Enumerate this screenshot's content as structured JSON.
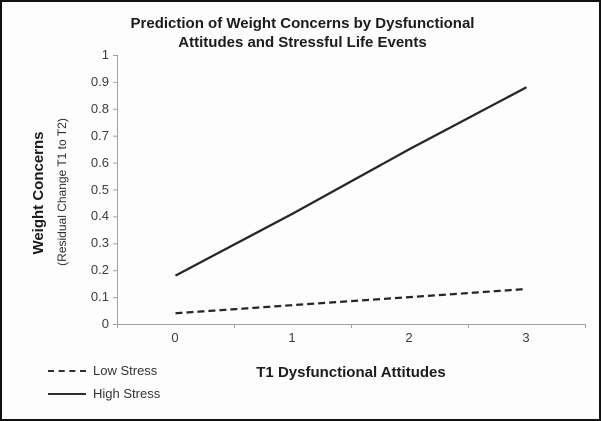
{
  "figure": {
    "background": "#fdfdfd",
    "frame_color": "#111111"
  },
  "chart_data": {
    "type": "line",
    "title": "Prediction of Weight Concerns by Dysfunctional Attitudes and Stressful Life Events",
    "title_line1": "Prediction of Weight Concerns by Dysfunctional",
    "title_line2": "Attitudes and Stressful Life Events",
    "xlabel": "T1 Dysfunctional Attitudes",
    "ylabel": "Weight Concerns",
    "ylabel_sub": "(Residual Change T1 to T2)",
    "categories": [
      0,
      1,
      2,
      3
    ],
    "x_tick_labels": [
      "0",
      "1",
      "2",
      "3"
    ],
    "y_tick_labels": [
      "0",
      "0.1",
      "0.2",
      "0.3",
      "0.4",
      "0.5",
      "0.6",
      "0.7",
      "0.8",
      "0.9",
      "1"
    ],
    "ylim": [
      0,
      1
    ],
    "grid": false,
    "legend_position": "bottom-left",
    "axis_color": "#a0a0a0",
    "line_color": "#262626",
    "series": [
      {
        "name": "Low Stress",
        "style": "dashed",
        "values": [
          0.04,
          0.07,
          0.1,
          0.13
        ]
      },
      {
        "name": "High Stress",
        "style": "solid",
        "values": [
          0.18,
          0.41,
          0.65,
          0.88
        ]
      }
    ]
  }
}
